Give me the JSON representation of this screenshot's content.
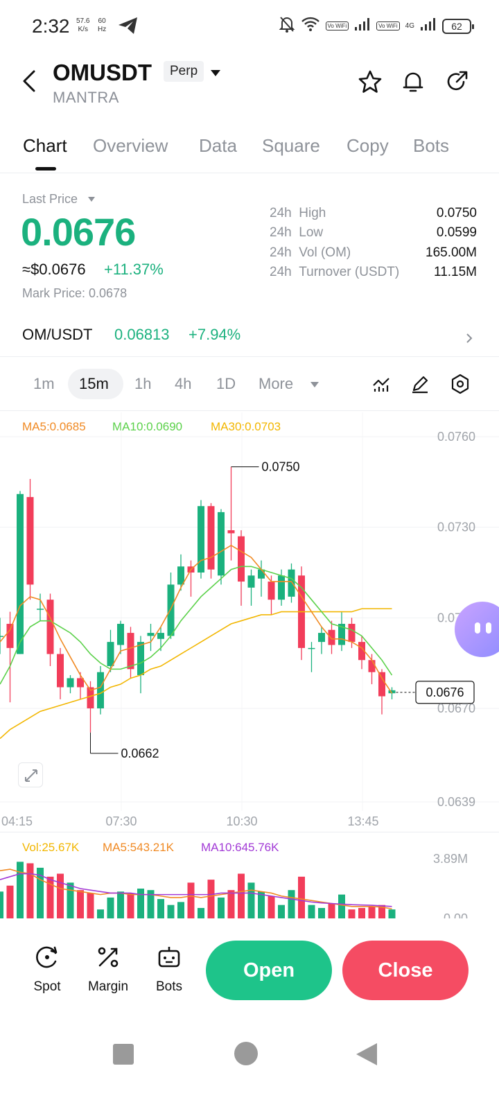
{
  "status": {
    "time": "2:32",
    "speed_value": "57.6",
    "speed_unit": "K/s",
    "hz_value": "60",
    "hz_unit": "Hz",
    "vowifi1": "Vo WiFi",
    "vowifi2": "Vo WiFi",
    "network": "4G",
    "battery": "62"
  },
  "header": {
    "symbol": "OMUSDT",
    "contract_type": "Perp",
    "name": "MANTRA"
  },
  "tabs": [
    "Chart",
    "Overview",
    "Data",
    "Square",
    "Copy",
    "Bots"
  ],
  "price": {
    "label": "Last Price",
    "last": "0.0676",
    "usd": "≈$0.0676",
    "change_pct": "+11.37%",
    "mark_label": "Mark Price:",
    "mark_value": "0.0678"
  },
  "stats": [
    {
      "label": "24h",
      "name": "High",
      "value": "0.0750"
    },
    {
      "label": "24h",
      "name": "Low",
      "value": "0.0599"
    },
    {
      "label": "24h",
      "name": "Vol (OM)",
      "value": "165.00M"
    },
    {
      "label": "24h",
      "name": "Turnover (USDT)",
      "value": "11.15M"
    }
  ],
  "spot_pair": {
    "label": "OM/USDT",
    "price": "0.06813",
    "change": "+7.94%"
  },
  "intervals": [
    "1m",
    "15m",
    "1h",
    "4h",
    "1D",
    "More"
  ],
  "active_interval": "15m",
  "ma_legend": {
    "ma5": "MA5:0.0685",
    "ma10": "MA10:0.0690",
    "ma30": "MA30:0.0703"
  },
  "volume_legend": {
    "vol": "Vol:25.67K",
    "ma5": "MA5:543.21K",
    "ma10": "MA10:645.76K"
  },
  "colors": {
    "up": "#1bb17e",
    "down": "#f23d5a",
    "ma5": "#f08a24",
    "ma10": "#5bd14a",
    "ma30": "#f2b600",
    "vol_ma10": "#a23ad6"
  },
  "chart_data": {
    "type": "candlestick",
    "y_ticks": [
      "0.0760",
      "0.0730",
      "0.0700",
      "0.0670",
      "0.0639"
    ],
    "x_ticks": [
      "04:15",
      "07:30",
      "10:30",
      "13:45"
    ],
    "high_marker": "0.0750",
    "low_marker": "0.0662",
    "current_price_tag": "0.0676",
    "volume_y_ticks": [
      "3.89M",
      "0.00"
    ],
    "candles": [
      {
        "o": 0.0694,
        "c": 0.0694,
        "h": 0.07,
        "l": 0.0688
      },
      {
        "o": 0.0698,
        "c": 0.069,
        "h": 0.0702,
        "l": 0.0672
      },
      {
        "o": 0.0688,
        "c": 0.0741,
        "h": 0.0742,
        "l": 0.0688
      },
      {
        "o": 0.074,
        "c": 0.0711,
        "h": 0.0746,
        "l": 0.0706
      },
      {
        "o": 0.0703,
        "c": 0.0703,
        "h": 0.0708,
        "l": 0.0699
      },
      {
        "o": 0.0706,
        "c": 0.0688,
        "h": 0.0708,
        "l": 0.0684
      },
      {
        "o": 0.0688,
        "c": 0.0677,
        "h": 0.069,
        "l": 0.0673
      },
      {
        "o": 0.0677,
        "c": 0.068,
        "h": 0.0681,
        "l": 0.0675
      },
      {
        "o": 0.068,
        "c": 0.0677,
        "h": 0.0682,
        "l": 0.0673
      },
      {
        "o": 0.0677,
        "c": 0.067,
        "h": 0.0679,
        "l": 0.0662
      },
      {
        "o": 0.067,
        "c": 0.0682,
        "h": 0.0684,
        "l": 0.0668
      },
      {
        "o": 0.0684,
        "c": 0.0692,
        "h": 0.0696,
        "l": 0.0682
      },
      {
        "o": 0.0691,
        "c": 0.0698,
        "h": 0.0699,
        "l": 0.0688
      },
      {
        "o": 0.0695,
        "c": 0.0683,
        "h": 0.0697,
        "l": 0.068
      },
      {
        "o": 0.0681,
        "c": 0.0692,
        "h": 0.0694,
        "l": 0.0675
      },
      {
        "o": 0.0694,
        "c": 0.0695,
        "h": 0.0698,
        "l": 0.0689
      },
      {
        "o": 0.0693,
        "c": 0.0695,
        "h": 0.0697,
        "l": 0.0689
      },
      {
        "o": 0.0694,
        "c": 0.0711,
        "h": 0.0715,
        "l": 0.0693
      },
      {
        "o": 0.0711,
        "c": 0.0717,
        "h": 0.0721,
        "l": 0.0709
      },
      {
        "o": 0.0717,
        "c": 0.0715,
        "h": 0.0719,
        "l": 0.0707
      },
      {
        "o": 0.0715,
        "c": 0.0737,
        "h": 0.0739,
        "l": 0.0713
      },
      {
        "o": 0.0737,
        "c": 0.0716,
        "h": 0.0738,
        "l": 0.0713
      },
      {
        "o": 0.0714,
        "c": 0.0735,
        "h": 0.0736,
        "l": 0.0711
      },
      {
        "o": 0.0729,
        "c": 0.0728,
        "h": 0.075,
        "l": 0.0719
      },
      {
        "o": 0.0727,
        "c": 0.0712,
        "h": 0.0729,
        "l": 0.0704
      },
      {
        "o": 0.071,
        "c": 0.0714,
        "h": 0.0716,
        "l": 0.0704
      },
      {
        "o": 0.0713,
        "c": 0.0716,
        "h": 0.0719,
        "l": 0.0707
      },
      {
        "o": 0.0712,
        "c": 0.0706,
        "h": 0.0714,
        "l": 0.0701
      },
      {
        "o": 0.0706,
        "c": 0.0714,
        "h": 0.0716,
        "l": 0.0704
      },
      {
        "o": 0.0707,
        "c": 0.0716,
        "h": 0.0718,
        "l": 0.0705
      },
      {
        "o": 0.0714,
        "c": 0.069,
        "h": 0.0717,
        "l": 0.0686
      },
      {
        "o": 0.069,
        "c": 0.069,
        "h": 0.0692,
        "l": 0.0682
      },
      {
        "o": 0.0692,
        "c": 0.0695,
        "h": 0.0697,
        "l": 0.0688
      },
      {
        "o": 0.0696,
        "c": 0.0691,
        "h": 0.0699,
        "l": 0.0688
      },
      {
        "o": 0.0691,
        "c": 0.0698,
        "h": 0.0702,
        "l": 0.0689
      },
      {
        "o": 0.0698,
        "c": 0.0692,
        "h": 0.07,
        "l": 0.069
      },
      {
        "o": 0.0692,
        "c": 0.0686,
        "h": 0.0694,
        "l": 0.0683
      },
      {
        "o": 0.0686,
        "c": 0.0682,
        "h": 0.0688,
        "l": 0.0678
      },
      {
        "o": 0.0682,
        "c": 0.0674,
        "h": 0.0683,
        "l": 0.0668
      },
      {
        "o": 0.0675,
        "c": 0.0676,
        "h": 0.0677,
        "l": 0.0673
      }
    ],
    "ma5": [
      0.0692,
      0.0696,
      0.0704,
      0.0707,
      0.0706,
      0.07,
      0.0693,
      0.0687,
      0.0681,
      0.0676,
      0.0677,
      0.0683,
      0.0689,
      0.069,
      0.0691,
      0.0692,
      0.0697,
      0.0703,
      0.071,
      0.0716,
      0.0719,
      0.072,
      0.0722,
      0.0724,
      0.0722,
      0.072,
      0.0716,
      0.0712,
      0.0712,
      0.0712,
      0.0707,
      0.0702,
      0.0697,
      0.0693,
      0.0693,
      0.0692,
      0.069,
      0.0686,
      0.068,
      0.0675
    ],
    "ma10": [
      0.0678,
      0.0684,
      0.0692,
      0.0697,
      0.0699,
      0.0699,
      0.0697,
      0.0695,
      0.0692,
      0.0688,
      0.0685,
      0.0683,
      0.0683,
      0.0684,
      0.0685,
      0.0687,
      0.069,
      0.0694,
      0.0699,
      0.0703,
      0.0707,
      0.071,
      0.0713,
      0.0716,
      0.0717,
      0.0717,
      0.0716,
      0.0715,
      0.0714,
      0.0713,
      0.071,
      0.0706,
      0.0702,
      0.0698,
      0.0697,
      0.0696,
      0.0694,
      0.069,
      0.0686,
      0.0681
    ],
    "ma30": [
      0.066,
      0.0663,
      0.0665,
      0.0667,
      0.0669,
      0.067,
      0.0671,
      0.0672,
      0.0673,
      0.0674,
      0.0675,
      0.0677,
      0.0678,
      0.068,
      0.0681,
      0.0683,
      0.0684,
      0.0686,
      0.0688,
      0.069,
      0.0692,
      0.0694,
      0.0696,
      0.0698,
      0.0699,
      0.07,
      0.0701,
      0.0701,
      0.0702,
      0.0702,
      0.0702,
      0.0702,
      0.0702,
      0.0702,
      0.0702,
      0.0702,
      0.0703,
      0.0703,
      0.0703,
      0.0703
    ],
    "volume": [
      0.9,
      1.1,
      1.9,
      1.85,
      1.7,
      1.4,
      1.5,
      1.2,
      0.95,
      0.85,
      0.3,
      0.7,
      0.9,
      0.85,
      1.0,
      0.95,
      0.65,
      0.45,
      0.55,
      1.2,
      0.35,
      1.3,
      0.7,
      0.95,
      1.5,
      1.2,
      0.9,
      0.75,
      0.45,
      0.95,
      1.4,
      0.45,
      0.35,
      0.5,
      0.8,
      0.3,
      0.35,
      0.4,
      0.45,
      0.3
    ],
    "vol_ma5": [
      1.6,
      1.65,
      1.55,
      1.5,
      1.3,
      1.15,
      1.0,
      0.95,
      0.9,
      0.85,
      0.8,
      0.85,
      0.85,
      0.8,
      0.8,
      0.8,
      0.75,
      0.7,
      0.7,
      0.75,
      0.7,
      0.75,
      0.8,
      0.85,
      0.9,
      0.95,
      0.9,
      0.85,
      0.75,
      0.7,
      0.65,
      0.6,
      0.55,
      0.5,
      0.45,
      0.4,
      0.4,
      0.4,
      0.38,
      0.32
    ],
    "vol_ma10": [
      1.3,
      1.4,
      1.5,
      1.5,
      1.45,
      1.3,
      1.2,
      1.1,
      1.0,
      0.95,
      0.9,
      0.85,
      0.85,
      0.85,
      0.8,
      0.8,
      0.8,
      0.8,
      0.8,
      0.8,
      0.8,
      0.8,
      0.85,
      0.85,
      0.85,
      0.85,
      0.8,
      0.75,
      0.7,
      0.65,
      0.6,
      0.55,
      0.52,
      0.5,
      0.48,
      0.46,
      0.45,
      0.44,
      0.42,
      0.4
    ]
  },
  "bottom_bar": {
    "spot": "Spot",
    "margin": "Margin",
    "bots": "Bots",
    "open": "Open",
    "close": "Close"
  }
}
